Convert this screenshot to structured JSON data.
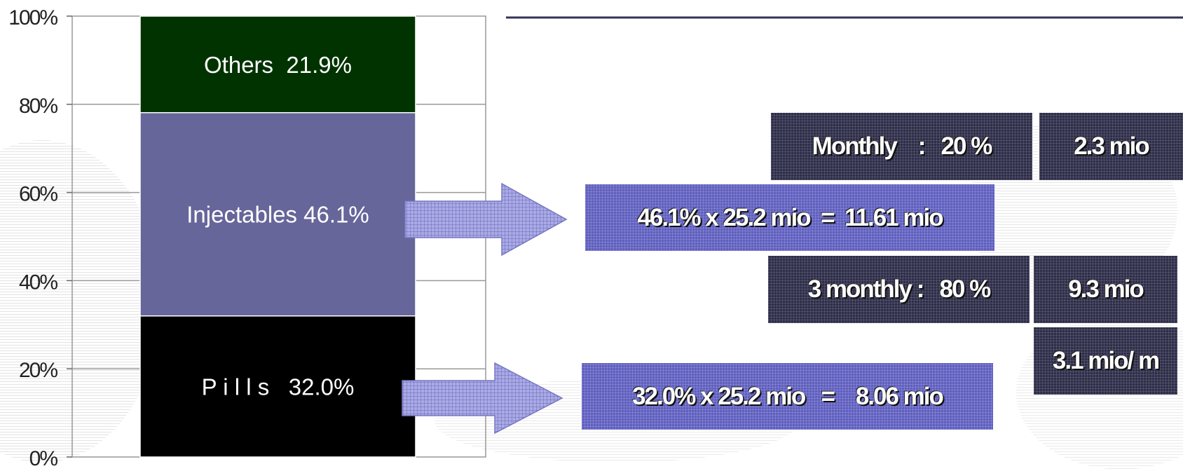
{
  "chart_data": {
    "type": "bar",
    "stacked": true,
    "categories": [
      ""
    ],
    "series": [
      {
        "name": "Pills",
        "value": 32.0,
        "label": "P i l l s   32.0%",
        "color": "#000000"
      },
      {
        "name": "Injectables",
        "value": 46.1,
        "label": "Injectables 46.1%",
        "color": "#66669a"
      },
      {
        "name": "Others",
        "value": 21.9,
        "label": "Others  21.9%",
        "color": "#003300"
      }
    ],
    "ylim": [
      0,
      100
    ],
    "yticks": [
      0,
      20,
      40,
      60,
      80,
      100
    ],
    "ytick_labels": [
      "0%",
      "20%",
      "40%",
      "60%",
      "80%",
      "100%"
    ],
    "grid": true
  },
  "boxes": {
    "monthly": "Monthly    :   20 %",
    "monthly_value": "2.3 mio",
    "injectables_calc": "46.1% x 25.2 mio  =  11.61 mio",
    "three_monthly": "3 monthly :   80 %",
    "three_monthly_value": "9.3 mio",
    "per_month": "3.1 mio/ m",
    "pills_calc": "32.0% x 25.2 mio   =    8.06 mio"
  },
  "colors": {
    "box_dark": "#2e2e4a",
    "box_purple": "#5f5fc0",
    "arrow": "#9999dd",
    "top_rule": "#333355"
  }
}
